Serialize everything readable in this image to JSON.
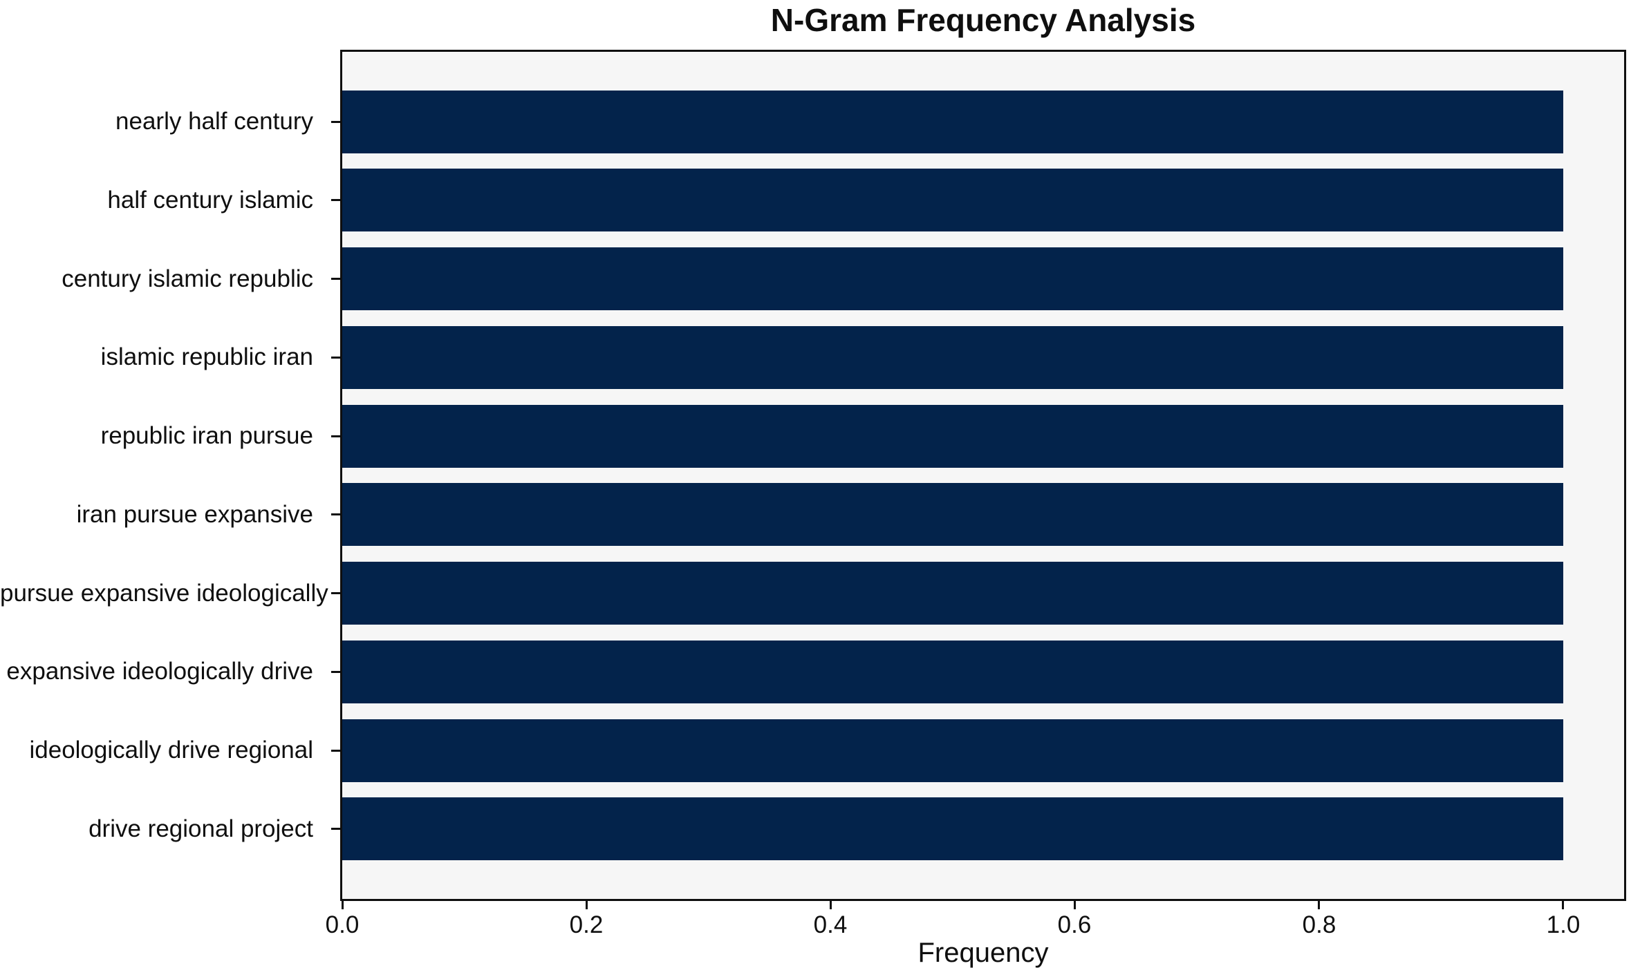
{
  "chart_data": {
    "type": "bar",
    "orientation": "horizontal",
    "title": "N-Gram Frequency Analysis",
    "xlabel": "Frequency",
    "ylabel": "",
    "categories": [
      "nearly half century",
      "half century islamic",
      "century islamic republic",
      "islamic republic iran",
      "republic iran pursue",
      "iran pursue expansive",
      "pursue expansive ideologically",
      "expansive ideologically drive",
      "ideologically drive regional",
      "drive regional project"
    ],
    "values": [
      1.0,
      1.0,
      1.0,
      1.0,
      1.0,
      1.0,
      1.0,
      1.0,
      1.0,
      1.0
    ],
    "xlim": [
      0,
      1.05
    ],
    "xticks": [
      0.0,
      0.2,
      0.4,
      0.6,
      0.8,
      1.0
    ],
    "xtick_labels": [
      "0.0",
      "0.2",
      "0.4",
      "0.6",
      "0.8",
      "1.0"
    ],
    "grid": false,
    "legend": null,
    "colors": {
      "bar": "#03234b",
      "plot_background": "#f6f6f6",
      "figure_background": "#ffffff",
      "spine": "#0f0f0f",
      "text": "#0f0f0f"
    }
  }
}
